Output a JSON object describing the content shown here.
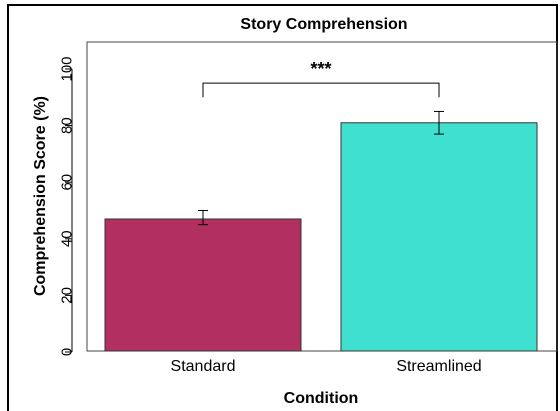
{
  "chart_data": {
    "type": "bar",
    "title": "Story Comprehension",
    "xlabel": "Condition",
    "ylabel": "Comprehension Score (%)",
    "categories": [
      "Standard",
      "Streamlined"
    ],
    "values": [
      47,
      81
    ],
    "error_low": [
      45,
      77
    ],
    "error_high": [
      50,
      85
    ],
    "colors": [
      "#b23060",
      "#40e0d0"
    ],
    "ylim": [
      0,
      110
    ],
    "yticks": [
      0,
      20,
      40,
      60,
      80,
      100
    ],
    "ytick_labels": [
      "0",
      "20",
      "40",
      "60",
      "80",
      "100"
    ],
    "significance": {
      "between": [
        "Standard",
        "Streamlined"
      ],
      "label": "***",
      "bracket_y": 95,
      "drop_y": 90
    },
    "grid": false,
    "legend": "none"
  }
}
